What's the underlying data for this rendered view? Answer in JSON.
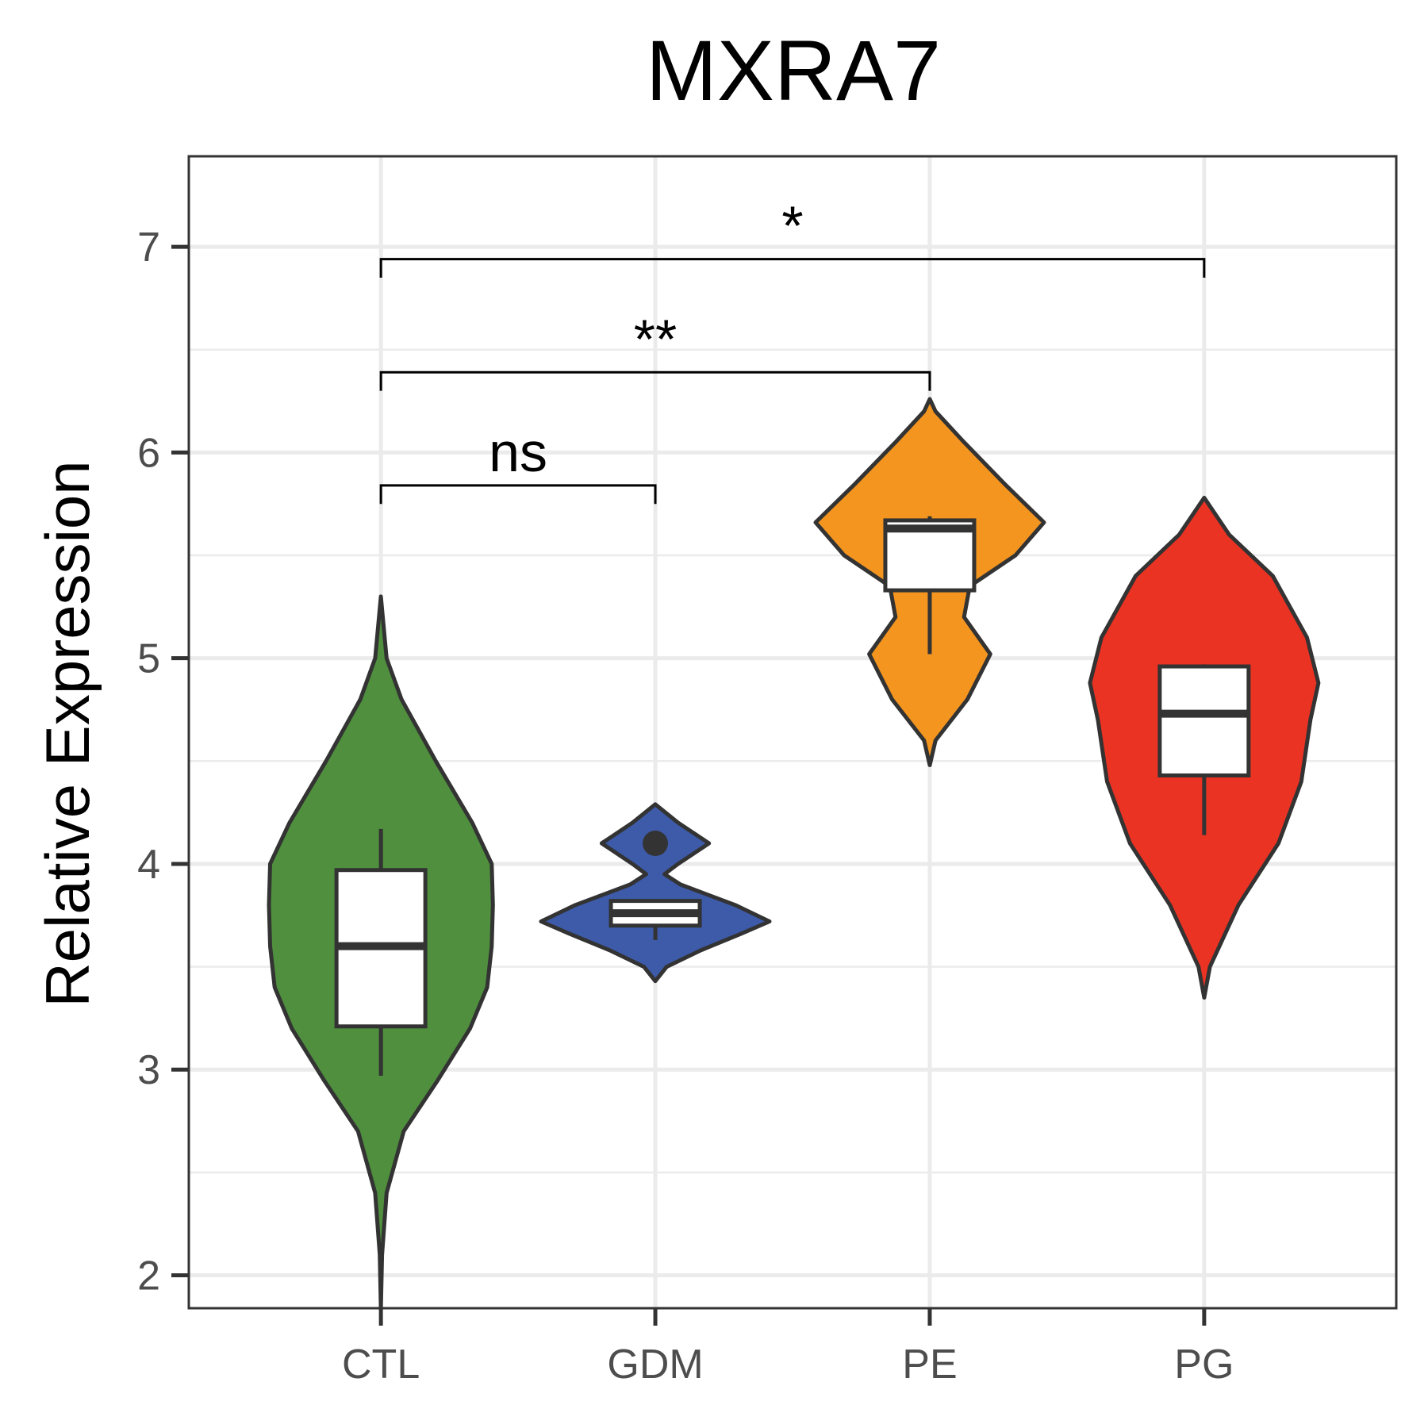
{
  "chart_data": {
    "type": "violin",
    "title": "MXRA7",
    "xlabel": "",
    "ylabel": "Relative Expression",
    "ylim": [
      1.84,
      7.44
    ],
    "yticks": [
      "2",
      "3",
      "4",
      "5",
      "6",
      "7"
    ],
    "grid": true,
    "legend": "none",
    "categories": [
      "CTL",
      "GDM",
      "PE",
      "PG"
    ],
    "groups": [
      {
        "name": "CTL",
        "color": "#4F8F3E",
        "box": {
          "whisker_low": 2.97,
          "q1": 3.21,
          "median": 3.6,
          "q3": 3.97,
          "whisker_high": 4.17,
          "outliers": []
        },
        "density": [
          [
            1.84,
            0.0
          ],
          [
            2.1,
            0.01
          ],
          [
            2.4,
            0.05
          ],
          [
            2.7,
            0.2
          ],
          [
            2.95,
            0.5
          ],
          [
            3.2,
            0.78
          ],
          [
            3.4,
            0.93
          ],
          [
            3.6,
            0.97
          ],
          [
            3.8,
            0.98
          ],
          [
            4.0,
            0.97
          ],
          [
            4.2,
            0.8
          ],
          [
            4.5,
            0.48
          ],
          [
            4.8,
            0.18
          ],
          [
            5.0,
            0.05
          ],
          [
            5.3,
            0.0
          ]
        ]
      },
      {
        "name": "GDM",
        "color": "#3D5BA9",
        "box": {
          "whisker_low": 3.63,
          "q1": 3.7,
          "median": 3.76,
          "q3": 3.82,
          "whisker_high": 3.82,
          "outliers": [
            4.1
          ]
        },
        "density": [
          [
            3.43,
            0.0
          ],
          [
            3.5,
            0.1
          ],
          [
            3.58,
            0.4
          ],
          [
            3.66,
            0.75
          ],
          [
            3.72,
            1.0
          ],
          [
            3.8,
            0.7
          ],
          [
            3.9,
            0.22
          ],
          [
            3.95,
            0.08
          ],
          [
            4.0,
            0.2
          ],
          [
            4.1,
            0.47
          ],
          [
            4.2,
            0.2
          ],
          [
            4.29,
            0.0
          ]
        ]
      },
      {
        "name": "PE",
        "color": "#F4951F",
        "box": {
          "whisker_low": 5.02,
          "q1": 5.33,
          "median": 5.63,
          "q3": 5.67,
          "whisker_high": 5.69,
          "outliers": []
        },
        "density": [
          [
            4.48,
            0.0
          ],
          [
            4.6,
            0.05
          ],
          [
            4.8,
            0.33
          ],
          [
            5.02,
            0.53
          ],
          [
            5.2,
            0.3
          ],
          [
            5.35,
            0.35
          ],
          [
            5.5,
            0.75
          ],
          [
            5.66,
            1.0
          ],
          [
            5.85,
            0.65
          ],
          [
            6.05,
            0.3
          ],
          [
            6.2,
            0.05
          ],
          [
            6.26,
            0.0
          ]
        ]
      },
      {
        "name": "PG",
        "color": "#EB3323",
        "box": {
          "whisker_low": 4.14,
          "q1": 4.43,
          "median": 4.73,
          "q3": 4.96,
          "whisker_high": 4.97,
          "outliers": []
        },
        "density": [
          [
            3.35,
            0.0
          ],
          [
            3.5,
            0.05
          ],
          [
            3.8,
            0.3
          ],
          [
            4.1,
            0.65
          ],
          [
            4.4,
            0.85
          ],
          [
            4.7,
            0.93
          ],
          [
            4.88,
            1.0
          ],
          [
            5.1,
            0.9
          ],
          [
            5.4,
            0.6
          ],
          [
            5.6,
            0.22
          ],
          [
            5.78,
            0.0
          ]
        ]
      }
    ],
    "comparisons": [
      {
        "from": "CTL",
        "to": "GDM",
        "y": 5.84,
        "label": "ns"
      },
      {
        "from": "CTL",
        "to": "PE",
        "y": 6.39,
        "label": "**"
      },
      {
        "from": "CTL",
        "to": "PG",
        "y": 6.94,
        "label": "*"
      }
    ]
  }
}
